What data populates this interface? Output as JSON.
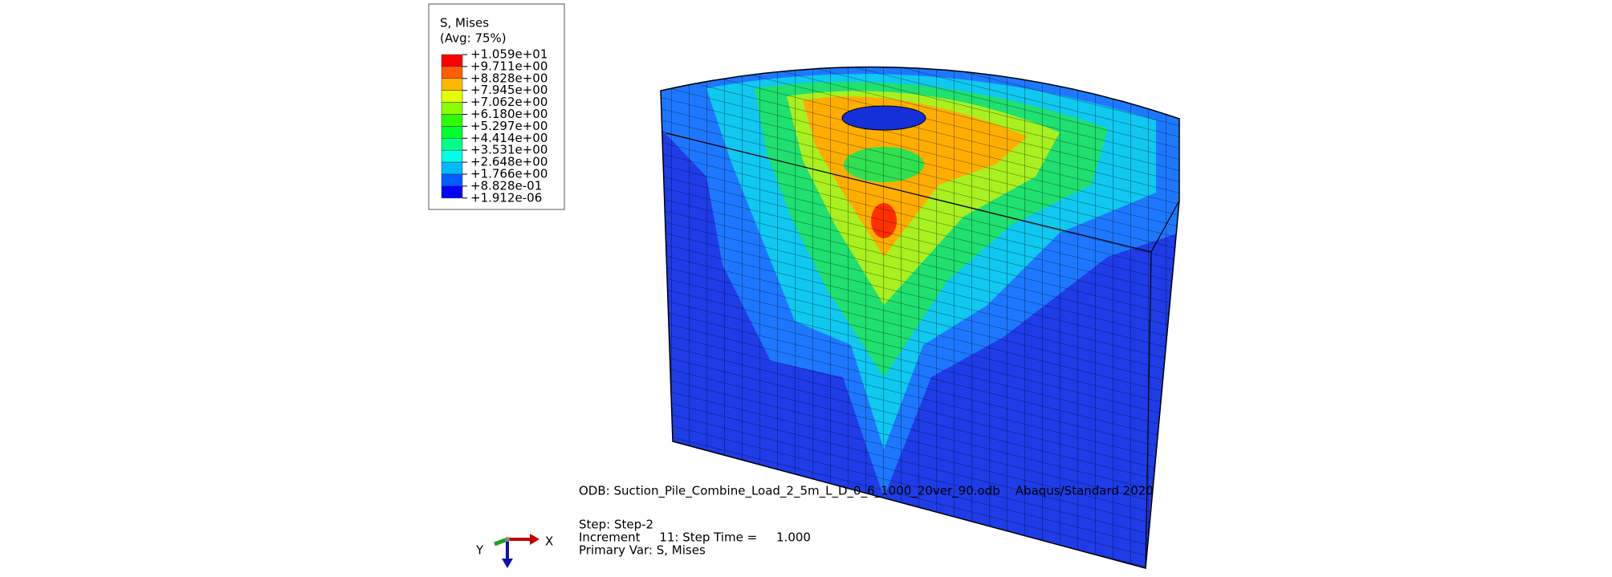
{
  "legend": {
    "title": "S, Mises",
    "subtitle": "(Avg: 75%)",
    "labels": [
      "+1.059e+01",
      "+9.711e+00",
      "+8.828e+00",
      "+7.945e+00",
      "+7.062e+00",
      "+6.180e+00",
      "+5.297e+00",
      "+4.414e+00",
      "+3.531e+00",
      "+2.648e+00",
      "+1.766e+00",
      "+8.828e-01",
      "+1.912e-06"
    ],
    "colors": [
      "#ff0000",
      "#ff5d00",
      "#ffb900",
      "#e3ff00",
      "#8bff00",
      "#2eff00",
      "#00ff2e",
      "#00ff8b",
      "#00ffe8",
      "#00b9ff",
      "#005dff",
      "#0000ff"
    ]
  },
  "info": {
    "odb": "ODB: Suction_Pile_Combine_Load_2_5m_L_D_0_6_1000_20ver_90.odb    Abaqus/Standard 2020",
    "step": "Step: Step-2",
    "increment": "Increment     11: Step Time =     1.000",
    "primary_var": "Primary Var: S, Mises"
  },
  "triad": {
    "x": "X",
    "y": "Y"
  }
}
